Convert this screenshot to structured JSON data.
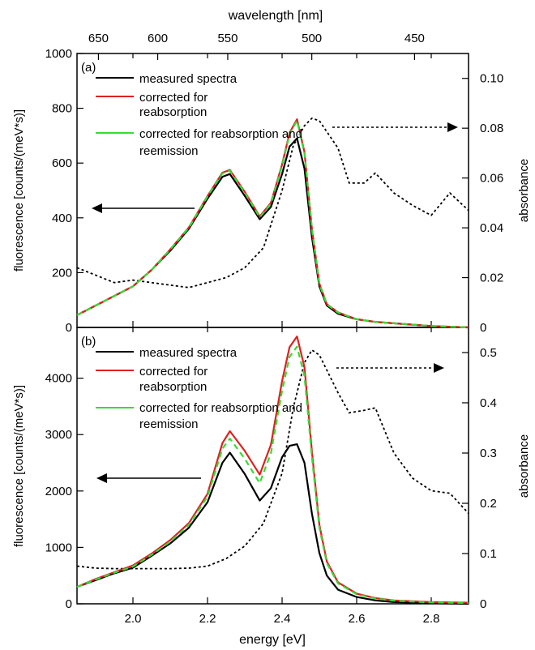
{
  "figure": {
    "top_axis_label": "wavelength [nm]",
    "top_ticks": [
      "650",
      "600",
      "550",
      "500",
      "450"
    ],
    "xlabel": "energy [eV]",
    "x_ticks": [
      "2.0",
      "2.2",
      "2.4",
      "2.6",
      "2.8"
    ]
  },
  "chart_data": [
    {
      "panel_label": "(a)",
      "type": "line",
      "xlabel": "energy [eV]",
      "xlim": [
        1.85,
        2.9
      ],
      "ylabel": "fluorescence [counts/(meV*s)]",
      "ylim": [
        0,
        1000
      ],
      "y_ticks": [
        "0",
        "200",
        "400",
        "600",
        "800",
        "1000"
      ],
      "y2label": "absorbance",
      "y2lim": [
        0,
        0.11
      ],
      "y2_ticks": [
        "0",
        "0.02",
        "0.04",
        "0.06",
        "0.08",
        "0.10"
      ],
      "legend": [
        "measured spectra",
        "corrected for reabsorption",
        "corrected for reabsorption and reemission"
      ],
      "series": [
        {
          "name": "measured spectra",
          "color": "#000000",
          "axis": "left",
          "x": [
            1.85,
            1.9,
            1.95,
            2.0,
            2.05,
            2.1,
            2.15,
            2.2,
            2.24,
            2.26,
            2.3,
            2.34,
            2.37,
            2.4,
            2.42,
            2.44,
            2.46,
            2.48,
            2.5,
            2.52,
            2.55,
            2.6,
            2.65,
            2.7,
            2.8,
            2.9
          ],
          "y": [
            45,
            80,
            115,
            150,
            210,
            280,
            360,
            470,
            550,
            560,
            480,
            395,
            440,
            560,
            660,
            690,
            580,
            330,
            150,
            80,
            50,
            30,
            20,
            15,
            5,
            0
          ]
        },
        {
          "name": "corrected for reabsorption",
          "color": "#e02020",
          "axis": "left",
          "x": [
            1.85,
            1.9,
            1.95,
            2.0,
            2.05,
            2.1,
            2.15,
            2.2,
            2.24,
            2.26,
            2.3,
            2.34,
            2.37,
            2.4,
            2.42,
            2.44,
            2.46,
            2.48,
            2.5,
            2.52,
            2.55,
            2.6,
            2.65,
            2.7,
            2.8,
            2.9
          ],
          "y": [
            45,
            80,
            115,
            150,
            210,
            285,
            365,
            480,
            565,
            575,
            495,
            405,
            455,
            595,
            710,
            760,
            640,
            360,
            160,
            85,
            55,
            30,
            20,
            15,
            5,
            0
          ]
        },
        {
          "name": "corrected for reabsorption and reemission",
          "color": "#33dd33",
          "axis": "left",
          "x": [
            1.85,
            1.9,
            1.95,
            2.0,
            2.05,
            2.1,
            2.15,
            2.2,
            2.24,
            2.26,
            2.3,
            2.34,
            2.37,
            2.4,
            2.42,
            2.44,
            2.46,
            2.48,
            2.5,
            2.52,
            2.55,
            2.6,
            2.65,
            2.7,
            2.8,
            2.9
          ],
          "y": [
            45,
            80,
            115,
            150,
            210,
            284,
            364,
            478,
            562,
            572,
            492,
            402,
            452,
            590,
            705,
            755,
            635,
            358,
            158,
            84,
            54,
            30,
            20,
            15,
            5,
            0
          ]
        },
        {
          "name": "",
          "style": "dotted",
          "color": "#000000",
          "axis": "right",
          "x": [
            1.85,
            1.9,
            1.95,
            2.0,
            2.05,
            2.1,
            2.15,
            2.2,
            2.25,
            2.3,
            2.35,
            2.4,
            2.43,
            2.46,
            2.48,
            2.5,
            2.55,
            2.58,
            2.62,
            2.65,
            2.7,
            2.75,
            2.8,
            2.85,
            2.9
          ],
          "y": [
            0.024,
            0.021,
            0.018,
            0.019,
            0.018,
            0.017,
            0.016,
            0.018,
            0.02,
            0.024,
            0.032,
            0.055,
            0.073,
            0.081,
            0.084,
            0.083,
            0.072,
            0.058,
            0.058,
            0.062,
            0.054,
            0.049,
            0.045,
            0.054,
            0.047
          ]
        }
      ],
      "annotations": [
        "arrow pointing left toward fluorescence axis",
        "dotted arrow pointing right toward absorbance axis"
      ]
    },
    {
      "panel_label": "(b)",
      "type": "line",
      "xlabel": "energy [eV]",
      "xlim": [
        1.85,
        2.9
      ],
      "ylabel": "fluorescence [counts/(meV*s)]",
      "ylim": [
        0,
        4900
      ],
      "y_ticks": [
        "0",
        "1000",
        "2000",
        "3000",
        "4000"
      ],
      "y2label": "absorbance",
      "y2lim": [
        0,
        0.55
      ],
      "y2_ticks": [
        "0",
        "0.1",
        "0.2",
        "0.3",
        "0.4",
        "0.5"
      ],
      "legend": [
        "measured spectra",
        "corrected for reabsorption",
        "corrected for reabsorption and reemission"
      ],
      "series": [
        {
          "name": "measured spectra",
          "color": "#000000",
          "axis": "left",
          "x": [
            1.85,
            1.9,
            1.95,
            2.0,
            2.05,
            2.1,
            2.15,
            2.2,
            2.24,
            2.26,
            2.3,
            2.34,
            2.37,
            2.4,
            2.42,
            2.44,
            2.46,
            2.48,
            2.5,
            2.52,
            2.55,
            2.6,
            2.65,
            2.7,
            2.8,
            2.9
          ],
          "y": [
            300,
            420,
            540,
            640,
            850,
            1070,
            1350,
            1800,
            2500,
            2680,
            2300,
            1830,
            2050,
            2600,
            2800,
            2830,
            2500,
            1600,
            900,
            500,
            250,
            120,
            60,
            30,
            10,
            0
          ]
        },
        {
          "name": "corrected for reabsorption",
          "color": "#e02020",
          "axis": "left",
          "x": [
            1.85,
            1.9,
            1.95,
            2.0,
            2.05,
            2.1,
            2.15,
            2.2,
            2.24,
            2.26,
            2.3,
            2.34,
            2.37,
            2.4,
            2.42,
            2.44,
            2.46,
            2.48,
            2.5,
            2.52,
            2.55,
            2.6,
            2.65,
            2.7,
            2.8,
            2.9
          ],
          "y": [
            300,
            440,
            560,
            680,
            890,
            1130,
            1430,
            1950,
            2850,
            3060,
            2710,
            2290,
            2820,
            3950,
            4550,
            4740,
            4200,
            2700,
            1400,
            750,
            380,
            180,
            100,
            60,
            30,
            20
          ]
        },
        {
          "name": "corrected for reabsorption and reemission",
          "color": "#33dd33",
          "axis": "left",
          "x": [
            1.85,
            1.9,
            1.95,
            2.0,
            2.05,
            2.1,
            2.15,
            2.2,
            2.24,
            2.26,
            2.3,
            2.34,
            2.37,
            2.4,
            2.42,
            2.44,
            2.46,
            2.48,
            2.5,
            2.52,
            2.55,
            2.6,
            2.65,
            2.7,
            2.8,
            2.9
          ],
          "y": [
            300,
            430,
            550,
            660,
            870,
            1100,
            1400,
            1900,
            2750,
            2930,
            2570,
            2140,
            2670,
            3780,
            4380,
            4560,
            4040,
            2600,
            1350,
            720,
            360,
            170,
            95,
            55,
            25,
            15
          ]
        },
        {
          "name": "",
          "style": "dotted",
          "color": "#000000",
          "axis": "right",
          "x": [
            1.85,
            1.9,
            1.95,
            2.0,
            2.05,
            2.1,
            2.15,
            2.2,
            2.25,
            2.3,
            2.35,
            2.4,
            2.43,
            2.46,
            2.48,
            2.5,
            2.55,
            2.58,
            2.62,
            2.65,
            2.7,
            2.75,
            2.8,
            2.85,
            2.9
          ],
          "y": [
            0.075,
            0.071,
            0.07,
            0.07,
            0.07,
            0.07,
            0.071,
            0.075,
            0.09,
            0.115,
            0.16,
            0.26,
            0.39,
            0.48,
            0.505,
            0.495,
            0.42,
            0.38,
            0.385,
            0.39,
            0.3,
            0.25,
            0.225,
            0.22,
            0.18
          ]
        }
      ],
      "annotations": [
        "arrow pointing left toward fluorescence axis",
        "dotted arrow pointing right toward absorbance axis"
      ]
    }
  ]
}
